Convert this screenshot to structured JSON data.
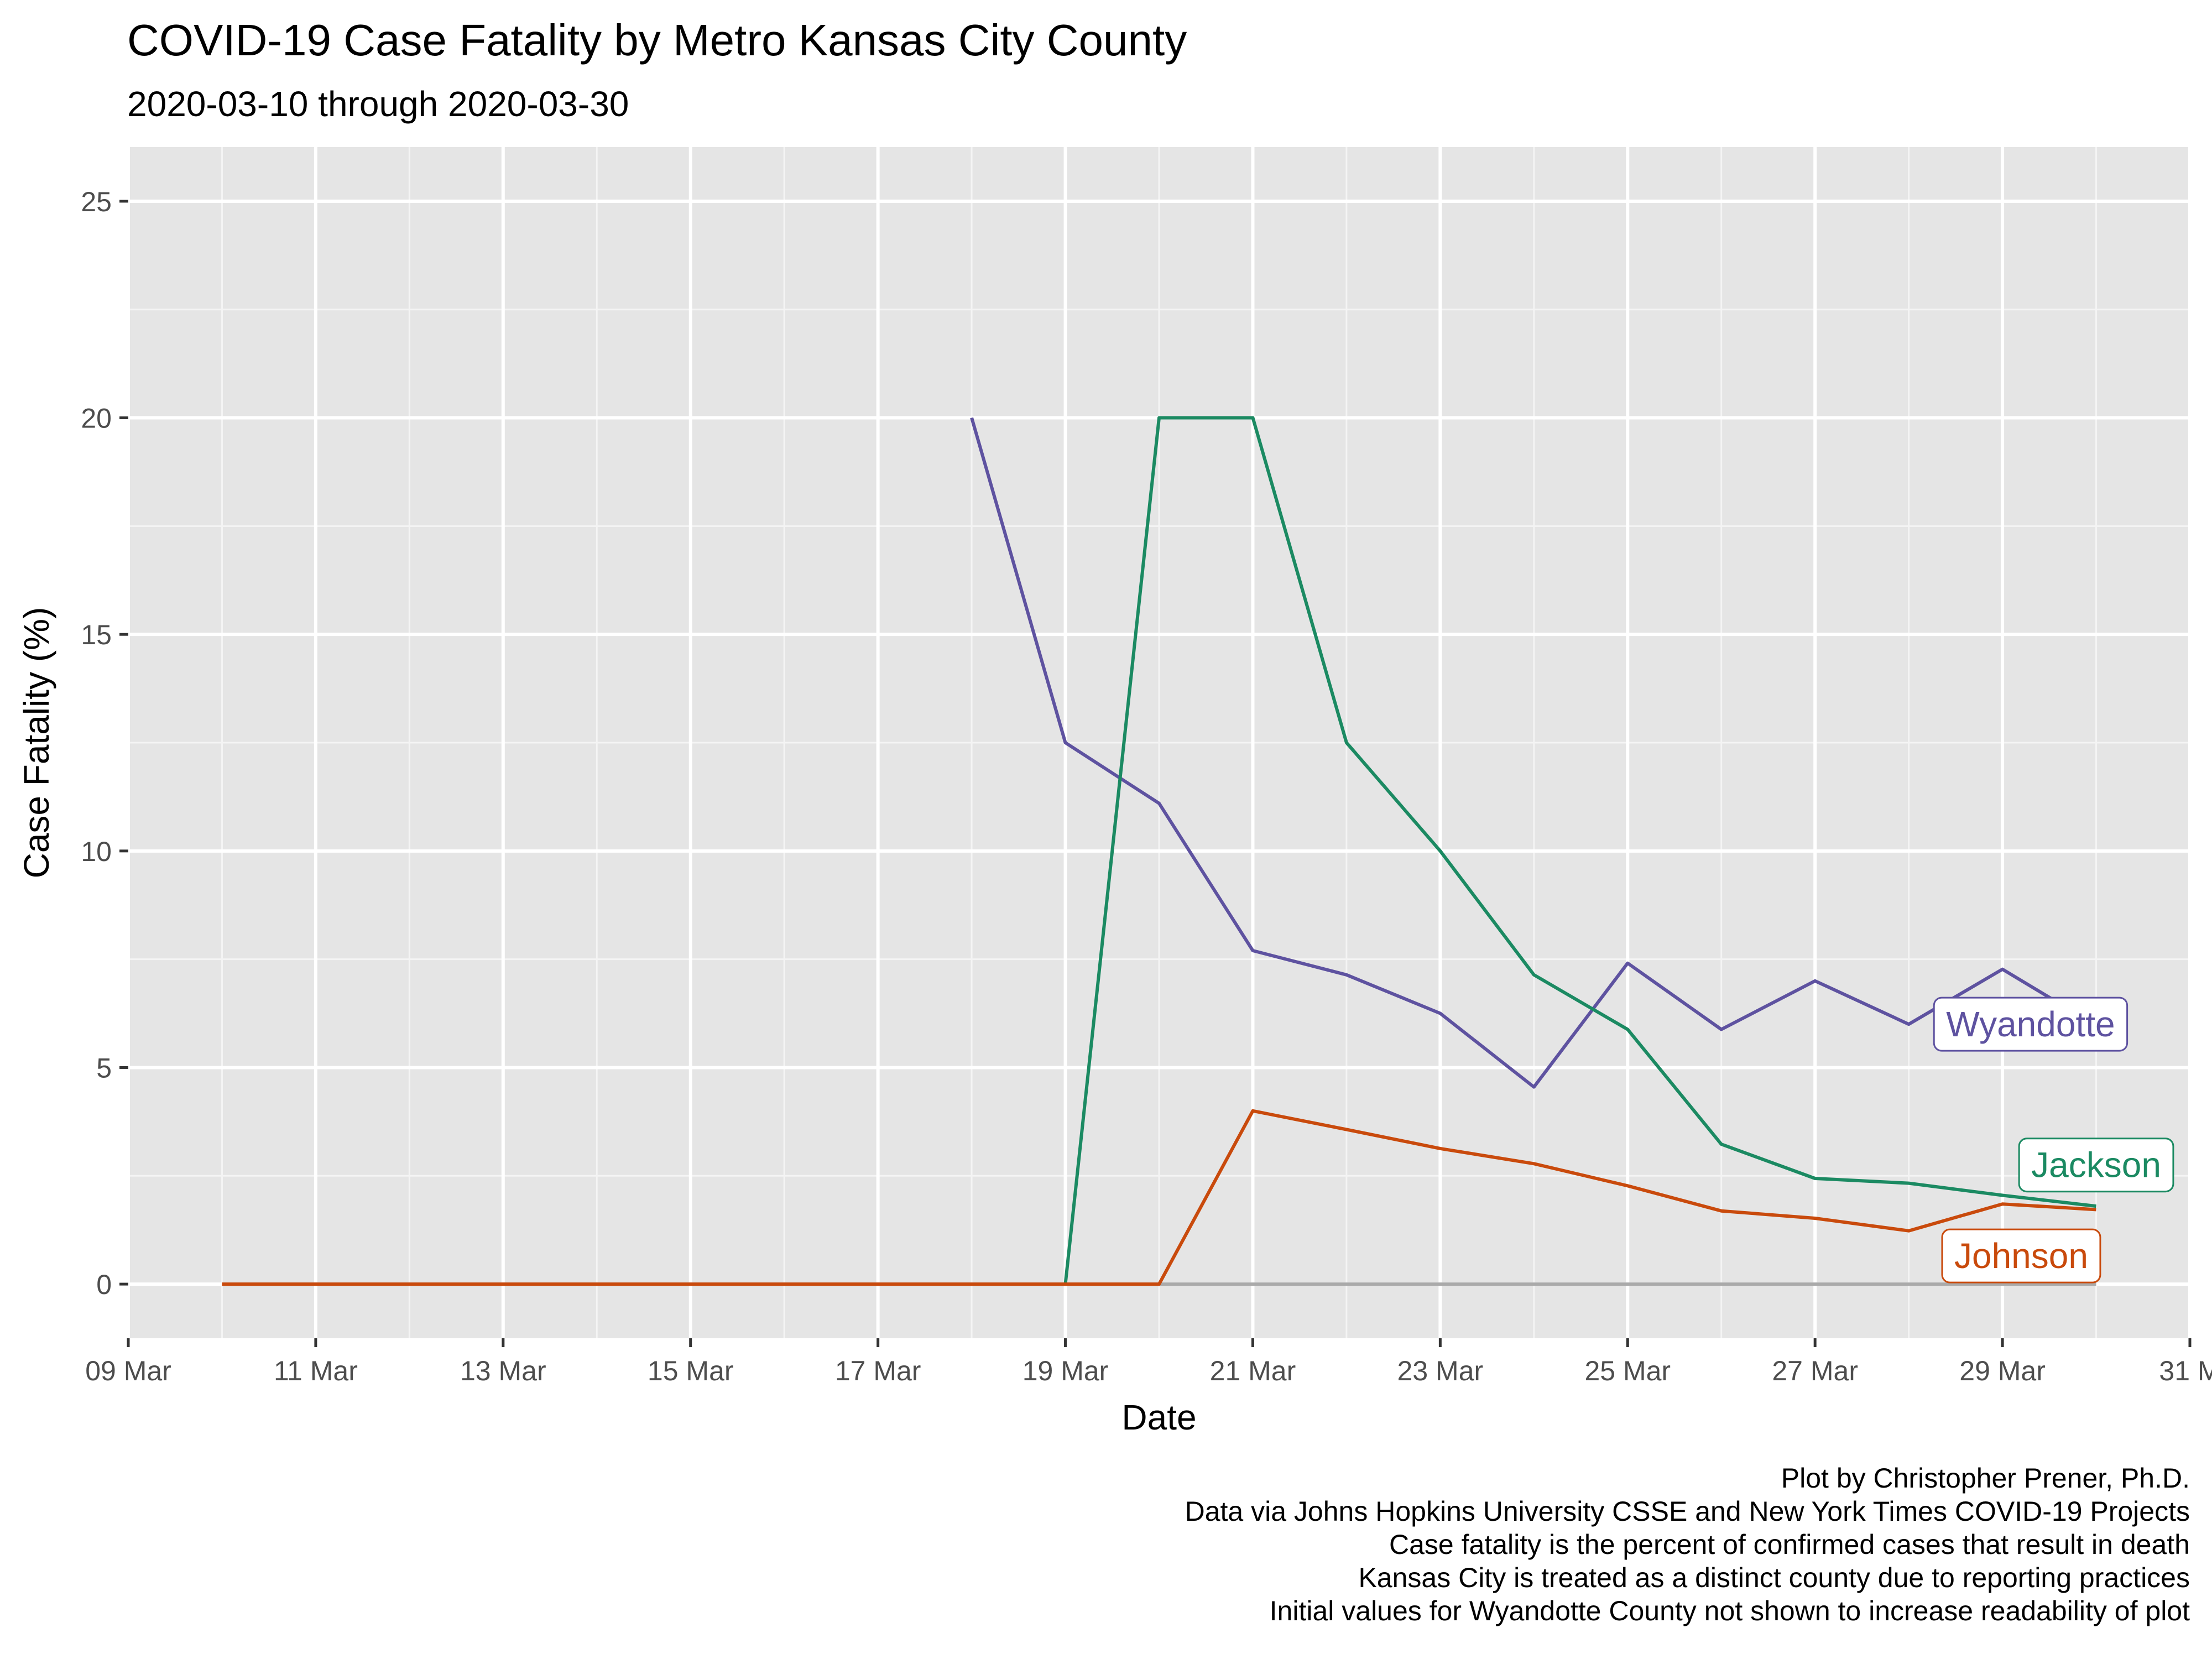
{
  "chart_data": {
    "type": "line",
    "title": "COVID-19 Case Fatality by Metro Kansas City County",
    "subtitle": "2020-03-10 through 2020-03-30",
    "xlabel": "Date",
    "ylabel": "Case Fatality (%)",
    "xlim": [
      "2020-03-09",
      "2020-03-31"
    ],
    "ylim": [
      -1.25,
      26.25
    ],
    "x_ticks": [
      {
        "date": "2020-03-09",
        "label": "09 Mar"
      },
      {
        "date": "2020-03-11",
        "label": "11 Mar"
      },
      {
        "date": "2020-03-13",
        "label": "13 Mar"
      },
      {
        "date": "2020-03-15",
        "label": "15 Mar"
      },
      {
        "date": "2020-03-17",
        "label": "17 Mar"
      },
      {
        "date": "2020-03-19",
        "label": "19 Mar"
      },
      {
        "date": "2020-03-21",
        "label": "21 Mar"
      },
      {
        "date": "2020-03-23",
        "label": "23 Mar"
      },
      {
        "date": "2020-03-25",
        "label": "25 Mar"
      },
      {
        "date": "2020-03-27",
        "label": "27 Mar"
      },
      {
        "date": "2020-03-29",
        "label": "29 Mar"
      },
      {
        "date": "2020-03-31",
        "label": "31 M"
      }
    ],
    "y_ticks": [
      {
        "value": 0,
        "label": "0"
      },
      {
        "value": 5,
        "label": "5"
      },
      {
        "value": 10,
        "label": "10"
      },
      {
        "value": 15,
        "label": "15"
      },
      {
        "value": 20,
        "label": "20"
      },
      {
        "value": 25,
        "label": "25"
      }
    ],
    "grid": true,
    "background": "#e5e5e5",
    "zero_line": {
      "color": "#aaaaaa"
    },
    "series": [
      {
        "name": "Wyandotte",
        "color": "#5e52a0",
        "points": [
          {
            "date": "2020-03-18",
            "y": 20.0
          },
          {
            "date": "2020-03-19",
            "y": 12.5
          },
          {
            "date": "2020-03-20",
            "y": 11.1
          },
          {
            "date": "2020-03-21",
            "y": 7.7
          },
          {
            "date": "2020-03-22",
            "y": 7.14
          },
          {
            "date": "2020-03-23",
            "y": 6.25
          },
          {
            "date": "2020-03-24",
            "y": 4.55
          },
          {
            "date": "2020-03-25",
            "y": 7.41
          },
          {
            "date": "2020-03-26",
            "y": 5.88
          },
          {
            "date": "2020-03-27",
            "y": 7.0
          },
          {
            "date": "2020-03-28",
            "y": 6.0
          },
          {
            "date": "2020-03-29",
            "y": 7.27
          },
          {
            "date": "2020-03-30",
            "y": 5.97
          }
        ],
        "label": {
          "date": "2020-03-29.3",
          "y": 6.0
        }
      },
      {
        "name": "Jackson",
        "color": "#1b8a62",
        "points": [
          {
            "date": "2020-03-19",
            "y": 0
          },
          {
            "date": "2020-03-20",
            "y": 20.0
          },
          {
            "date": "2020-03-21",
            "y": 20.0
          },
          {
            "date": "2020-03-22",
            "y": 12.5
          },
          {
            "date": "2020-03-23",
            "y": 10.0
          },
          {
            "date": "2020-03-24",
            "y": 7.14
          },
          {
            "date": "2020-03-25",
            "y": 5.88
          },
          {
            "date": "2020-03-26",
            "y": 3.23
          },
          {
            "date": "2020-03-27",
            "y": 2.44
          },
          {
            "date": "2020-03-28",
            "y": 2.33
          },
          {
            "date": "2020-03-29",
            "y": 2.05
          },
          {
            "date": "2020-03-30",
            "y": 1.8
          }
        ],
        "label": {
          "date": "2020-03-30",
          "y": 2.75
        }
      },
      {
        "name": "Johnson",
        "color": "#c94a0c",
        "points": [
          {
            "date": "2020-03-10",
            "y": 0
          },
          {
            "date": "2020-03-11",
            "y": 0
          },
          {
            "date": "2020-03-12",
            "y": 0
          },
          {
            "date": "2020-03-13",
            "y": 0
          },
          {
            "date": "2020-03-14",
            "y": 0
          },
          {
            "date": "2020-03-15",
            "y": 0
          },
          {
            "date": "2020-03-16",
            "y": 0
          },
          {
            "date": "2020-03-17",
            "y": 0
          },
          {
            "date": "2020-03-18",
            "y": 0
          },
          {
            "date": "2020-03-19",
            "y": 0
          },
          {
            "date": "2020-03-20",
            "y": 0
          },
          {
            "date": "2020-03-21",
            "y": 4.0
          },
          {
            "date": "2020-03-22",
            "y": 3.57
          },
          {
            "date": "2020-03-23",
            "y": 3.13
          },
          {
            "date": "2020-03-24",
            "y": 2.78
          },
          {
            "date": "2020-03-25",
            "y": 2.27
          },
          {
            "date": "2020-03-26",
            "y": 1.69
          },
          {
            "date": "2020-03-27",
            "y": 1.52
          },
          {
            "date": "2020-03-28",
            "y": 1.23
          },
          {
            "date": "2020-03-29",
            "y": 1.85
          },
          {
            "date": "2020-03-30",
            "y": 1.72
          }
        ],
        "label": {
          "date": "2020-03-29.2",
          "y": 0.65
        }
      }
    ],
    "caption": [
      "Plot by Christopher Prener, Ph.D.",
      "Data via Johns Hopkins University CSSE and New York Times COVID-19 Projects",
      "Case fatality is the percent of confirmed cases that result in death",
      "Kansas City is treated as a distinct county due to reporting practices",
      "Initial values for Wyandotte County not shown to increase readability of plot"
    ]
  }
}
